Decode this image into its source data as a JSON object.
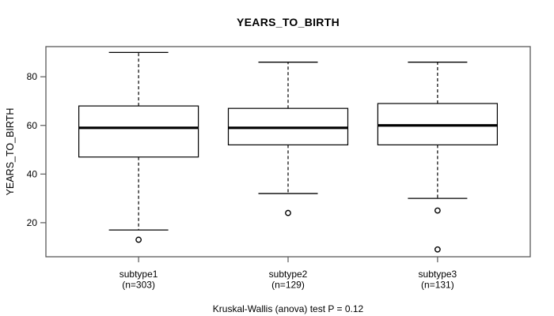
{
  "colors": {
    "background": "#ffffff",
    "frame": "#595959",
    "line": "#000000",
    "box_fill": "#ffffff"
  },
  "chart_data": {
    "type": "boxplot",
    "title": "YEARS_TO_BIRTH",
    "xlabel": "",
    "ylabel": "YEARS_TO_BIRTH",
    "ylim": [
      6,
      92.4
    ],
    "yticks": [
      20,
      40,
      60,
      80
    ],
    "grid": false,
    "annotation": "Kruskal-Wallis (anova) test P = 0.12",
    "groups": [
      {
        "label": "subtype1",
        "sublabel": "(n=303)",
        "n": 303,
        "whisker_low": 17,
        "q1": 47,
        "median": 59,
        "q3": 68,
        "whisker_high": 90,
        "outliers": [
          13
        ]
      },
      {
        "label": "subtype2",
        "sublabel": "(n=129)",
        "n": 129,
        "whisker_low": 32,
        "q1": 52,
        "median": 59,
        "q3": 67,
        "whisker_high": 86,
        "outliers": [
          24
        ]
      },
      {
        "label": "subtype3",
        "sublabel": "(n=131)",
        "n": 131,
        "whisker_low": 30,
        "q1": 52,
        "median": 60,
        "q3": 69,
        "whisker_high": 86,
        "outliers": [
          25,
          9
        ]
      }
    ]
  }
}
